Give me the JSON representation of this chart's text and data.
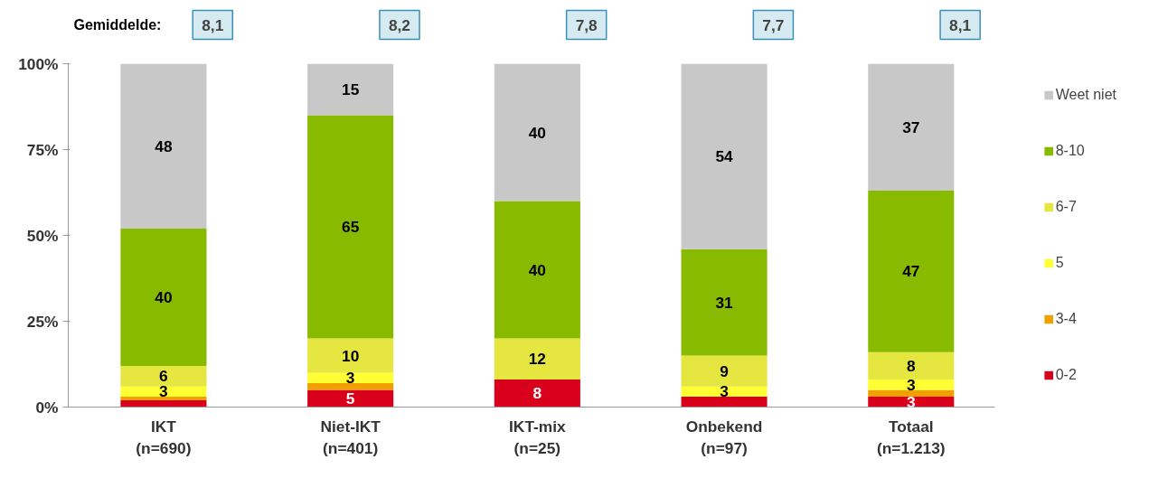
{
  "chart_data": {
    "type": "bar",
    "stacked": true,
    "categories": [
      "IKT\n(n=690)",
      "Niet-IKT\n(n=401)",
      "IKT-mix\n(n=25)",
      "Onbekend\n(n=97)",
      "Totaal\n(n=1.213)"
    ],
    "series": [
      {
        "name": "0-2",
        "color": "#d9001b",
        "values": [
          2,
          5,
          8,
          3,
          3
        ],
        "value_labels": [
          null,
          "5",
          "8",
          null,
          "3"
        ]
      },
      {
        "name": "3-4",
        "color": "#f0a000",
        "values": [
          1,
          2,
          0,
          0,
          2
        ],
        "value_labels": [
          null,
          null,
          null,
          null,
          null
        ]
      },
      {
        "name": "5",
        "color": "#ffff33",
        "values": [
          3,
          3,
          0,
          3,
          3
        ],
        "value_labels": [
          "3",
          "3",
          null,
          "3",
          "3"
        ]
      },
      {
        "name": "6-7",
        "color": "#e6e640",
        "values": [
          6,
          10,
          12,
          9,
          8
        ],
        "value_labels": [
          "6",
          "10",
          "12",
          "9",
          "8"
        ]
      },
      {
        "name": "8-10",
        "color": "#88bb00",
        "values": [
          40,
          65,
          40,
          31,
          47
        ],
        "value_labels": [
          "40",
          "65",
          "40",
          "31",
          "47"
        ]
      },
      {
        "name": "Weet niet",
        "color": "#c8c8c8",
        "values": [
          48,
          15,
          40,
          54,
          37
        ],
        "value_labels": [
          "48",
          "15",
          "40",
          "54",
          "37"
        ]
      }
    ],
    "ylim": [
      0,
      100
    ],
    "yticks": [
      {
        "value": 0,
        "label": "0%"
      },
      {
        "value": 25,
        "label": "25%"
      },
      {
        "value": 50,
        "label": "50%"
      },
      {
        "value": 75,
        "label": "75%"
      },
      {
        "value": 100,
        "label": "100%"
      }
    ],
    "annotations": [
      "Gemiddelde:",
      "8,1",
      "8,2",
      "7,8",
      "7,7",
      "8,1"
    ],
    "legend": "right",
    "grid": false
  }
}
